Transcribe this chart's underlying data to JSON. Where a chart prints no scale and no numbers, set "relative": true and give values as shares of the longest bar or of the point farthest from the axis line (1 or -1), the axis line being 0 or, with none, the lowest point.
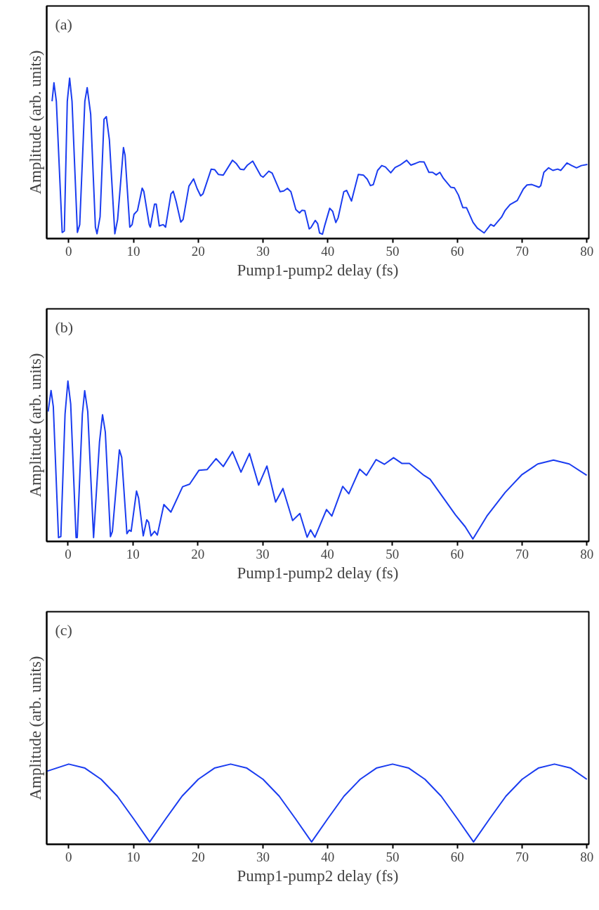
{
  "chart_data": [
    {
      "type": "line",
      "relative": true,
      "tick_labels": "x",
      "color": "#1a3cf0",
      "xlabel": "Pump1-pump2 delay (fs)",
      "ylabel": "Amplitude (arb. units)",
      "annotations": [
        "(a)"
      ],
      "xlim": [
        -3.4,
        80.3
      ],
      "xticks": [
        0,
        10,
        20,
        30,
        40,
        50,
        60,
        70,
        80
      ],
      "x": [
        -2.57,
        -2.28,
        -1.91,
        -1.01,
        -0.68,
        -0.22,
        0.14,
        0.51,
        1.34,
        1.7,
        2.49,
        2.85,
        3.39,
        4.12,
        4.37,
        4.84,
        5.45,
        5.81,
        6.28,
        7.12,
        7.55,
        8.45,
        8.7,
        9.43,
        9.79,
        10.08,
        10.62,
        11.34,
        11.59,
        12.43,
        12.6,
        13.25,
        13.51,
        13.98,
        14.59,
        14.95,
        15.79,
        16.14,
        16.58,
        17.3,
        17.66,
        18.56,
        19.28,
        19.83,
        20.37,
        20.73,
        22.0,
        22.55,
        23.1,
        23.86,
        25.28,
        25.9,
        26.48,
        27.04,
        27.6,
        28.41,
        29.65,
        30.02,
        30.89,
        31.41,
        32.64,
        33.2,
        33.76,
        34.3,
        35.07,
        35.63,
        36.0,
        36.45,
        37.13,
        37.39,
        38.06,
        38.43,
        38.73,
        39.18,
        39.55,
        40.3,
        40.75,
        41.24,
        41.6,
        42.47,
        42.91,
        43.66,
        44.71,
        45.52,
        46.09,
        46.58,
        47.02,
        47.69,
        48.33,
        48.9,
        49.72,
        50.39,
        51.14,
        52.18,
        52.82,
        53.57,
        54.2,
        54.87,
        55.61,
        56.18,
        56.74,
        57.3,
        57.86,
        58.98,
        59.54,
        60.17,
        60.85,
        61.41,
        62.42,
        63.09,
        64.14,
        65.15,
        65.64,
        66.83,
        67.39,
        68.14,
        69.25,
        70.19,
        70.75,
        71.5,
        72.61,
        72.88,
        73.36,
        74.1,
        74.75,
        75.49,
        75.98,
        76.92,
        77.66,
        78.4,
        79.15,
        80.08
      ],
      "values": [
        0.856,
        0.971,
        0.856,
        0.038,
        0.047,
        0.856,
        1.0,
        0.856,
        0.038,
        0.087,
        0.856,
        0.941,
        0.776,
        0.071,
        0.03,
        0.135,
        0.744,
        0.76,
        0.615,
        0.03,
        0.119,
        0.567,
        0.519,
        0.071,
        0.087,
        0.151,
        0.175,
        0.314,
        0.295,
        0.087,
        0.071,
        0.215,
        0.215,
        0.079,
        0.087,
        0.071,
        0.279,
        0.295,
        0.231,
        0.103,
        0.119,
        0.327,
        0.372,
        0.311,
        0.266,
        0.279,
        0.433,
        0.429,
        0.4,
        0.395,
        0.488,
        0.466,
        0.433,
        0.429,
        0.458,
        0.483,
        0.392,
        0.383,
        0.42,
        0.408,
        0.292,
        0.297,
        0.313,
        0.292,
        0.181,
        0.16,
        0.176,
        0.174,
        0.06,
        0.068,
        0.113,
        0.094,
        0.035,
        0.027,
        0.085,
        0.189,
        0.17,
        0.1,
        0.13,
        0.292,
        0.3,
        0.234,
        0.4,
        0.395,
        0.37,
        0.33,
        0.336,
        0.425,
        0.455,
        0.446,
        0.41,
        0.443,
        0.458,
        0.488,
        0.458,
        0.469,
        0.479,
        0.477,
        0.413,
        0.413,
        0.397,
        0.413,
        0.375,
        0.32,
        0.317,
        0.271,
        0.193,
        0.193,
        0.101,
        0.065,
        0.035,
        0.088,
        0.077,
        0.134,
        0.176,
        0.212,
        0.237,
        0.309,
        0.334,
        0.337,
        0.32,
        0.33,
        0.413,
        0.441,
        0.425,
        0.433,
        0.425,
        0.471,
        0.455,
        0.441,
        0.455,
        0.462
      ]
    },
    {
      "type": "line",
      "relative": true,
      "tick_labels": "x",
      "color": "#1a3cf0",
      "xlabel": "Pump1-pump2 delay (fs)",
      "ylabel": "Amplitude (arb. units)",
      "annotations": [
        "(b)"
      ],
      "xlim": [
        -3.3,
        80.3
      ],
      "xticks": [
        0,
        10,
        20,
        30,
        40,
        50,
        60,
        70,
        80
      ],
      "x": [
        -3.08,
        -2.63,
        -2.28,
        -1.48,
        -1.12,
        -0.47,
        -0.03,
        0.4,
        1.23,
        1.41,
        2.2,
        2.56,
        3.03,
        3.93,
        4.84,
        5.31,
        5.74,
        6.53,
        6.83,
        7.91,
        8.27,
        9.07,
        9.43,
        9.72,
        10.55,
        10.87,
        11.59,
        12.13,
        12.43,
        12.78,
        13.33,
        13.76,
        14.77,
        15.85,
        17.66,
        18.74,
        20.19,
        21.45,
        22.82,
        23.93,
        25.35,
        26.66,
        27.97,
        29.39,
        30.66,
        32.0,
        33.13,
        34.62,
        35.74,
        36.86,
        37.39,
        38.06,
        39.85,
        40.67,
        42.35,
        43.29,
        44.97,
        46.01,
        47.5,
        48.77,
        50.19,
        51.5,
        52.63,
        54.87,
        55.81,
        57.86,
        59.73,
        61.23,
        62.42,
        64.58,
        67.39,
        70.0,
        72.43,
        74.85,
        77.28,
        79.98
      ],
      "values": [
        0.81,
        0.941,
        0.841,
        0.024,
        0.03,
        0.794,
        1.0,
        0.857,
        0.024,
        0.024,
        0.794,
        0.94,
        0.81,
        0.024,
        0.619,
        0.79,
        0.682,
        0.03,
        0.062,
        0.571,
        0.524,
        0.048,
        0.071,
        0.063,
        0.314,
        0.27,
        0.035,
        0.135,
        0.119,
        0.035,
        0.063,
        0.04,
        0.23,
        0.183,
        0.341,
        0.357,
        0.444,
        0.448,
        0.516,
        0.467,
        0.56,
        0.432,
        0.548,
        0.351,
        0.47,
        0.245,
        0.33,
        0.13,
        0.174,
        0.026,
        0.072,
        0.026,
        0.199,
        0.158,
        0.343,
        0.297,
        0.45,
        0.412,
        0.51,
        0.481,
        0.522,
        0.486,
        0.486,
        0.412,
        0.388,
        0.272,
        0.166,
        0.092,
        0.015,
        0.158,
        0.305,
        0.417,
        0.483,
        0.507,
        0.483,
        0.412
      ]
    },
    {
      "type": "line",
      "relative": true,
      "tick_labels": "x",
      "color": "#1a3cf0",
      "xlabel": "Pump1-pump2 delay (fs)",
      "ylabel": "Amplitude (arb. units)",
      "annotations": [
        "(c)"
      ],
      "xlim": [
        -3.4,
        80.3
      ],
      "xticks": [
        0,
        10,
        20,
        30,
        40,
        50,
        60,
        70,
        80
      ],
      "x": [
        -3.4,
        0,
        2.5,
        5,
        7.5,
        10,
        12.5,
        15,
        17.5,
        20,
        22.5,
        25,
        27.5,
        30,
        32.5,
        35,
        37.5,
        40,
        42.5,
        45,
        47.5,
        50,
        52.5,
        55,
        57.5,
        60,
        62.5,
        65,
        67.5,
        70,
        72.5,
        75,
        77.5,
        80
      ],
      "values": [
        0.91,
        1.0,
        0.95,
        0.81,
        0.6,
        0.32,
        0.03,
        0.32,
        0.6,
        0.81,
        0.95,
        1.0,
        0.95,
        0.81,
        0.6,
        0.32,
        0.03,
        0.32,
        0.6,
        0.81,
        0.95,
        1.0,
        0.95,
        0.81,
        0.6,
        0.32,
        0.03,
        0.32,
        0.6,
        0.81,
        0.95,
        1.0,
        0.95,
        0.81
      ]
    }
  ]
}
